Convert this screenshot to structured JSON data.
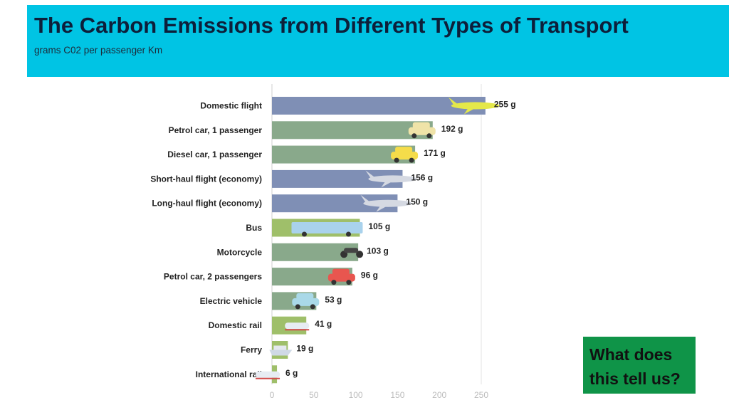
{
  "header": {
    "title": "The Carbon Emissions from Different Types of Transport",
    "subtitle": "grams C02 per passenger Km"
  },
  "colors": {
    "banner": "#00c4e4",
    "question_box": "#0f9448",
    "flight_bar": "#7f8fb5",
    "road_bar": "#89a98b",
    "bus_bar": "#9fbf6a"
  },
  "chart_data": {
    "type": "bar",
    "orientation": "horizontal",
    "title": "",
    "xlabel": "",
    "ylabel": "",
    "xlim": [
      0,
      250
    ],
    "grid": false,
    "categories": [
      "Domestic flight",
      "Petrol car, 1 passenger",
      "Diesel car, 1 passenger",
      "Short-haul flight (economy)",
      "Long-haul flight (economy)",
      "Bus",
      "Motorcycle",
      "Petrol car, 2 passengers",
      "Electric vehicle",
      "Domestic rail",
      "Ferry",
      "International rail"
    ],
    "values": [
      255,
      192,
      171,
      156,
      150,
      105,
      103,
      96,
      53,
      41,
      19,
      6
    ],
    "value_labels": [
      "255 g",
      "192 g",
      "171 g",
      "156 g",
      "150 g",
      "105 g",
      "103 g",
      "96 g",
      "53 g",
      "41 g",
      "19 g",
      "6 g"
    ],
    "bar_colors": [
      "#7f8fb5",
      "#89a98b",
      "#89a98b",
      "#7f8fb5",
      "#7f8fb5",
      "#9fbf6a",
      "#89a98b",
      "#89a98b",
      "#89a98b",
      "#9fbf6a",
      "#9fbf6a",
      "#9fbf6a"
    ],
    "icons": [
      "plane-icon",
      "car-icon",
      "car-icon",
      "plane-icon",
      "plane-icon",
      "bus-icon",
      "motorcycle-icon",
      "car-icon",
      "car-icon",
      "train-icon",
      "ferry-icon",
      "train-icon"
    ],
    "x_ticks": [
      "0",
      "50",
      "100",
      "150",
      "200",
      "250"
    ]
  },
  "callout": {
    "text": "What does this tell us?"
  }
}
